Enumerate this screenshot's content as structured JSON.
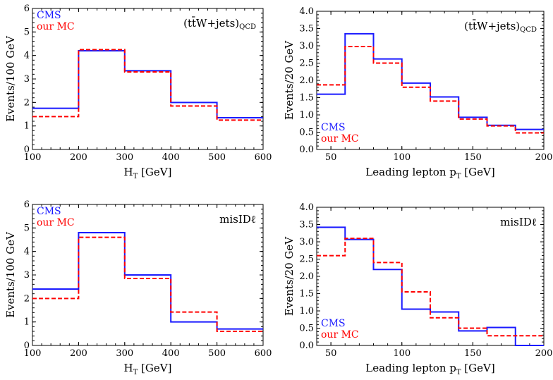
{
  "colors": {
    "cms": "#1a1aff",
    "mc": "#ff0000",
    "axis": "#000000"
  },
  "chart_data": [
    {
      "type": "step",
      "annotation": "(tt̄W+jets)QCD",
      "annotation_parts": [
        "(t",
        "t̄",
        "W+jets)",
        "QCD"
      ],
      "xlabel": "H",
      "xlabel_sub": "T",
      "xlabel_unit": " [GeV]",
      "ylabel": "Events/100 GeV",
      "xlim": [
        100,
        600
      ],
      "ylim": [
        0,
        6
      ],
      "xticks": [
        "100",
        "200",
        "300",
        "400",
        "500",
        "600"
      ],
      "yticks": [
        "0",
        "1",
        "2",
        "3",
        "4",
        "5",
        "6"
      ],
      "legend_position": "top-left",
      "bin_edges": [
        100,
        200,
        300,
        400,
        500,
        600
      ],
      "series": [
        {
          "name": "CMS",
          "style": "solid",
          "values": [
            1.75,
            4.2,
            3.35,
            2.0,
            1.35
          ]
        },
        {
          "name": "our MC",
          "style": "dashed",
          "values": [
            1.4,
            4.25,
            3.3,
            1.85,
            1.25
          ]
        }
      ]
    },
    {
      "type": "step",
      "annotation": "(tt̄W+jets)QCD",
      "annotation_parts": [
        "(t",
        "t̄",
        "W+jets)",
        "QCD"
      ],
      "xlabel": "Leading lepton p",
      "xlabel_sub": "T",
      "xlabel_unit": " [GeV]",
      "ylabel": "Events/20 GeV",
      "xlim": [
        40,
        200
      ],
      "ylim": [
        0,
        4.0
      ],
      "xticks": [
        "50",
        "100",
        "150",
        "200"
      ],
      "yticks": [
        "0.0",
        "0.5",
        "1.0",
        "1.5",
        "2.0",
        "2.5",
        "3.0",
        "3.5",
        "4.0"
      ],
      "legend_position": "bottom-left",
      "bin_edges": [
        40,
        60,
        80,
        100,
        120,
        140,
        160,
        180,
        200
      ],
      "series": [
        {
          "name": "CMS",
          "style": "solid",
          "values": [
            1.6,
            3.35,
            2.62,
            1.92,
            1.52,
            0.93,
            0.7,
            0.58
          ]
        },
        {
          "name": "our MC",
          "style": "dashed",
          "values": [
            1.87,
            2.98,
            2.5,
            1.8,
            1.4,
            0.88,
            0.68,
            0.48
          ]
        }
      ]
    },
    {
      "type": "step",
      "annotation": "misIDℓ",
      "annotation_parts": [
        "misIDℓ"
      ],
      "xlabel": "H",
      "xlabel_sub": "T",
      "xlabel_unit": " [GeV]",
      "ylabel": "Events/100 GeV",
      "xlim": [
        100,
        600
      ],
      "ylim": [
        0,
        6
      ],
      "xticks": [
        "100",
        "200",
        "300",
        "400",
        "500",
        "600"
      ],
      "yticks": [
        "0",
        "1",
        "2",
        "3",
        "4",
        "5",
        "6"
      ],
      "legend_position": "top-left",
      "bin_edges": [
        100,
        200,
        300,
        400,
        500,
        600
      ],
      "series": [
        {
          "name": "CMS",
          "style": "solid",
          "values": [
            2.4,
            4.8,
            3.0,
            1.0,
            0.7
          ]
        },
        {
          "name": "our MC",
          "style": "dashed",
          "values": [
            2.0,
            4.6,
            2.85,
            1.42,
            0.6
          ]
        }
      ]
    },
    {
      "type": "step",
      "annotation": "misIDℓ",
      "annotation_parts": [
        "misIDℓ"
      ],
      "xlabel": "Leading lepton p",
      "xlabel_sub": "T",
      "xlabel_unit": " [GeV]",
      "ylabel": "Events/20 GeV",
      "xlim": [
        40,
        200
      ],
      "ylim": [
        0,
        4.0
      ],
      "xticks": [
        "50",
        "100",
        "150",
        "200"
      ],
      "yticks": [
        "0.0",
        "0.5",
        "1.0",
        "1.5",
        "2.0",
        "2.5",
        "3.0",
        "3.5",
        "4.0"
      ],
      "legend_position": "bottom-left",
      "bin_edges": [
        40,
        60,
        80,
        100,
        120,
        140,
        160,
        180,
        200
      ],
      "series": [
        {
          "name": "CMS",
          "style": "solid",
          "values": [
            3.42,
            3.07,
            2.2,
            1.05,
            0.97,
            0.42,
            0.52,
            0.0
          ]
        },
        {
          "name": "our MC",
          "style": "dashed",
          "values": [
            2.6,
            3.1,
            2.4,
            1.55,
            0.8,
            0.5,
            0.28,
            0.28
          ]
        }
      ]
    }
  ]
}
